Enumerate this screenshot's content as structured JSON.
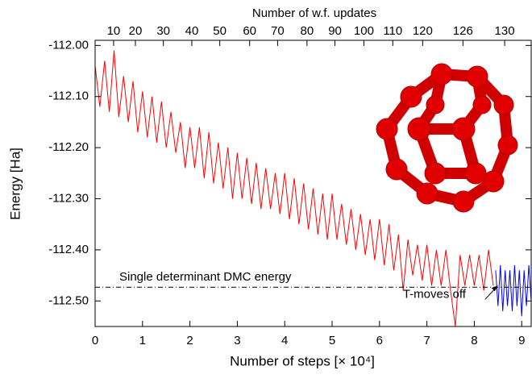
{
  "chart_data": {
    "type": "line",
    "xlabel": "Number of steps [× 10⁴]",
    "ylabel": "Energy [Ha]",
    "x2label": "Number of w.f. updates",
    "xlim": [
      0,
      9.2
    ],
    "ylim": [
      -112.55,
      -111.99
    ],
    "xticks": [
      0,
      1,
      2,
      3,
      4,
      5,
      6,
      7,
      8,
      9
    ],
    "yticks": [
      {
        "value": -112.0,
        "label": "-112.00"
      },
      {
        "value": -112.1,
        "label": "-112.10"
      },
      {
        "value": -112.2,
        "label": "-112.20"
      },
      {
        "value": -112.3,
        "label": "-112.30"
      },
      {
        "value": -112.4,
        "label": "-112.40"
      },
      {
        "value": -112.5,
        "label": "-112.50"
      }
    ],
    "x2ticks": [
      {
        "value": 0.39,
        "label": "10"
      },
      {
        "value": 0.85,
        "label": "20"
      },
      {
        "value": 1.44,
        "label": "30"
      },
      {
        "value": 2.04,
        "label": "40"
      },
      {
        "value": 2.63,
        "label": "50"
      },
      {
        "value": 3.26,
        "label": "60"
      },
      {
        "value": 3.85,
        "label": "70"
      },
      {
        "value": 4.47,
        "label": "80"
      },
      {
        "value": 5.06,
        "label": "90"
      },
      {
        "value": 5.67,
        "label": "100"
      },
      {
        "value": 6.28,
        "label": "110"
      },
      {
        "value": 6.91,
        "label": "120"
      },
      {
        "value": 7.76,
        "label": "126"
      },
      {
        "value": 8.64,
        "label": "130"
      }
    ],
    "reference_line": {
      "value": -112.473,
      "label": "Single determinant DMC energy"
    },
    "annotation": {
      "label": "T-moves off",
      "x": 8.5,
      "y": -112.47
    },
    "series": [
      {
        "color": "#ff0000",
        "x": [
          0,
          0.1,
          0.2,
          0.3,
          0.4,
          0.5,
          0.6,
          0.7,
          0.8,
          0.9,
          1,
          1.1,
          1.2,
          1.3,
          1.4,
          1.5,
          1.6,
          1.7,
          1.8,
          1.9,
          2,
          2.1,
          2.2,
          2.3,
          2.4,
          2.5,
          2.6,
          2.7,
          2.8,
          2.9,
          3,
          3.1,
          3.2,
          3.3,
          3.4,
          3.5,
          3.6,
          3.7,
          3.8,
          3.9,
          4,
          4.1,
          4.2,
          4.3,
          4.4,
          4.5,
          4.6,
          4.7,
          4.8,
          4.9,
          5,
          5.1,
          5.2,
          5.3,
          5.4,
          5.5,
          5.6,
          5.7,
          5.8,
          5.9,
          6,
          6.1,
          6.2,
          6.3,
          6.4,
          6.5,
          6.6,
          6.7,
          6.8,
          6.9,
          7,
          7.1,
          7.2,
          7.3,
          7.4,
          7.5,
          7.6,
          7.7,
          7.8,
          7.9,
          8,
          8.1,
          8.2,
          8.3,
          8.4
        ],
        "values": [
          -112.04,
          -112.12,
          -112.03,
          -112.13,
          -112.01,
          -112.14,
          -112.06,
          -112.15,
          -112.07,
          -112.17,
          -112.09,
          -112.18,
          -112.1,
          -112.19,
          -112.11,
          -112.2,
          -112.13,
          -112.21,
          -112.15,
          -112.24,
          -112.16,
          -112.24,
          -112.16,
          -112.26,
          -112.17,
          -112.27,
          -112.19,
          -112.28,
          -112.2,
          -112.3,
          -112.21,
          -112.3,
          -112.22,
          -112.31,
          -112.23,
          -112.32,
          -112.24,
          -112.32,
          -112.25,
          -112.33,
          -112.25,
          -112.34,
          -112.26,
          -112.35,
          -112.27,
          -112.36,
          -112.28,
          -112.37,
          -112.29,
          -112.38,
          -112.29,
          -112.38,
          -112.31,
          -112.39,
          -112.32,
          -112.4,
          -112.33,
          -112.41,
          -112.34,
          -112.42,
          -112.34,
          -112.43,
          -112.35,
          -112.44,
          -112.37,
          -112.48,
          -112.38,
          -112.45,
          -112.39,
          -112.46,
          -112.39,
          -112.47,
          -112.4,
          -112.47,
          -112.4,
          -112.48,
          -112.55,
          -112.41,
          -112.47,
          -112.41,
          -112.47,
          -112.41,
          -112.48,
          -112.4,
          -112.47
        ]
      },
      {
        "color": "#0000ff",
        "x": [
          8.45,
          8.5,
          8.55,
          8.6,
          8.65,
          8.7,
          8.75,
          8.8,
          8.85,
          8.9,
          8.95,
          9,
          9.05,
          9.1,
          9.15,
          9.2
        ],
        "values": [
          -112.44,
          -112.51,
          -112.43,
          -112.52,
          -112.44,
          -112.51,
          -112.44,
          -112.52,
          -112.43,
          -112.51,
          -112.44,
          -112.53,
          -112.44,
          -112.51,
          -112.43,
          -112.5
        ]
      }
    ]
  }
}
